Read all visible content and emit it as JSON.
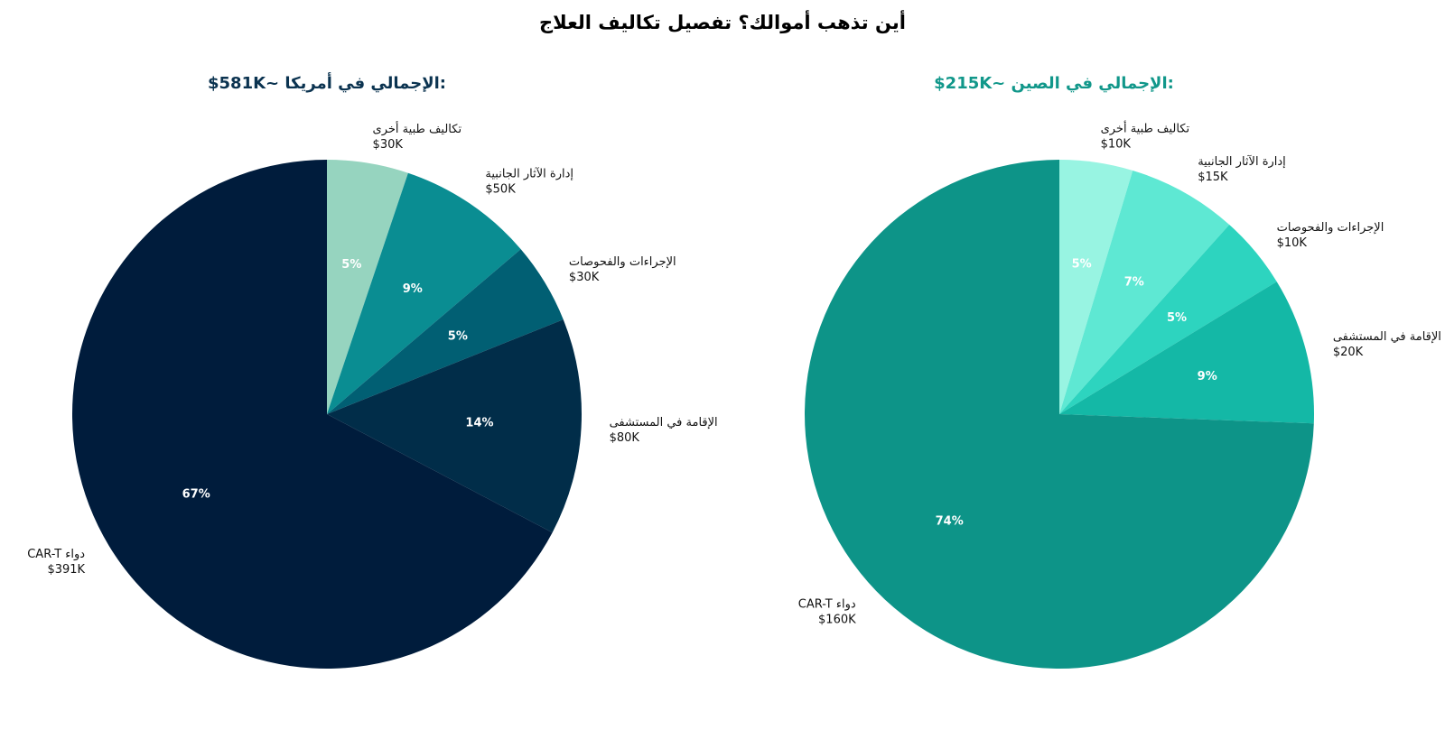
{
  "title": "أين تذهب أموالك؟ تفصيل تكاليف العلاج",
  "chart_data": [
    {
      "type": "pie",
      "title": "$581K~ الإجمالي في أمريكا:",
      "title_color": "#0b3350",
      "start": "top, clockwise",
      "slices": [
        {
          "label": "تكاليف طبية أخرى",
          "value_label": "$30K",
          "value": 30,
          "percent": 5,
          "color": "#96d4bf"
        },
        {
          "label": "إدارة الآثار الجانبية",
          "value_label": "$50K",
          "value": 50,
          "percent": 9,
          "color": "#0a8d92"
        },
        {
          "label": "الإجراءات والفحوصات",
          "value_label": "$30K",
          "value": 30,
          "percent": 5,
          "color": "#015f73"
        },
        {
          "label": "الإقامة في المستشفى",
          "value_label": "$80K",
          "value": 80,
          "percent": 14,
          "color": "#012d49"
        },
        {
          "label": "CAR-T دواء",
          "value_label": "$391K",
          "value": 391,
          "percent": 67,
          "color": "#001c3c"
        }
      ]
    },
    {
      "type": "pie",
      "title": "$215K~ الإجمالي في الصين:",
      "title_color": "#11978a",
      "start": "top, clockwise",
      "slices": [
        {
          "label": "تكاليف طبية أخرى",
          "value_label": "$10K",
          "value": 10,
          "percent": 5,
          "color": "#98f4e2"
        },
        {
          "label": "إدارة الآثار الجانبية",
          "value_label": "$15K",
          "value": 15,
          "percent": 7,
          "color": "#5ee8d3"
        },
        {
          "label": "الإجراءات والفحوصات",
          "value_label": "$10K",
          "value": 10,
          "percent": 5,
          "color": "#2dd4bf"
        },
        {
          "label": "الإقامة في المستشفى",
          "value_label": "$20K",
          "value": 20,
          "percent": 9,
          "color": "#14b8a6"
        },
        {
          "label": "CAR-T دواء",
          "value_label": "$160K",
          "value": 160,
          "percent": 74,
          "color": "#0d9488"
        }
      ]
    }
  ]
}
